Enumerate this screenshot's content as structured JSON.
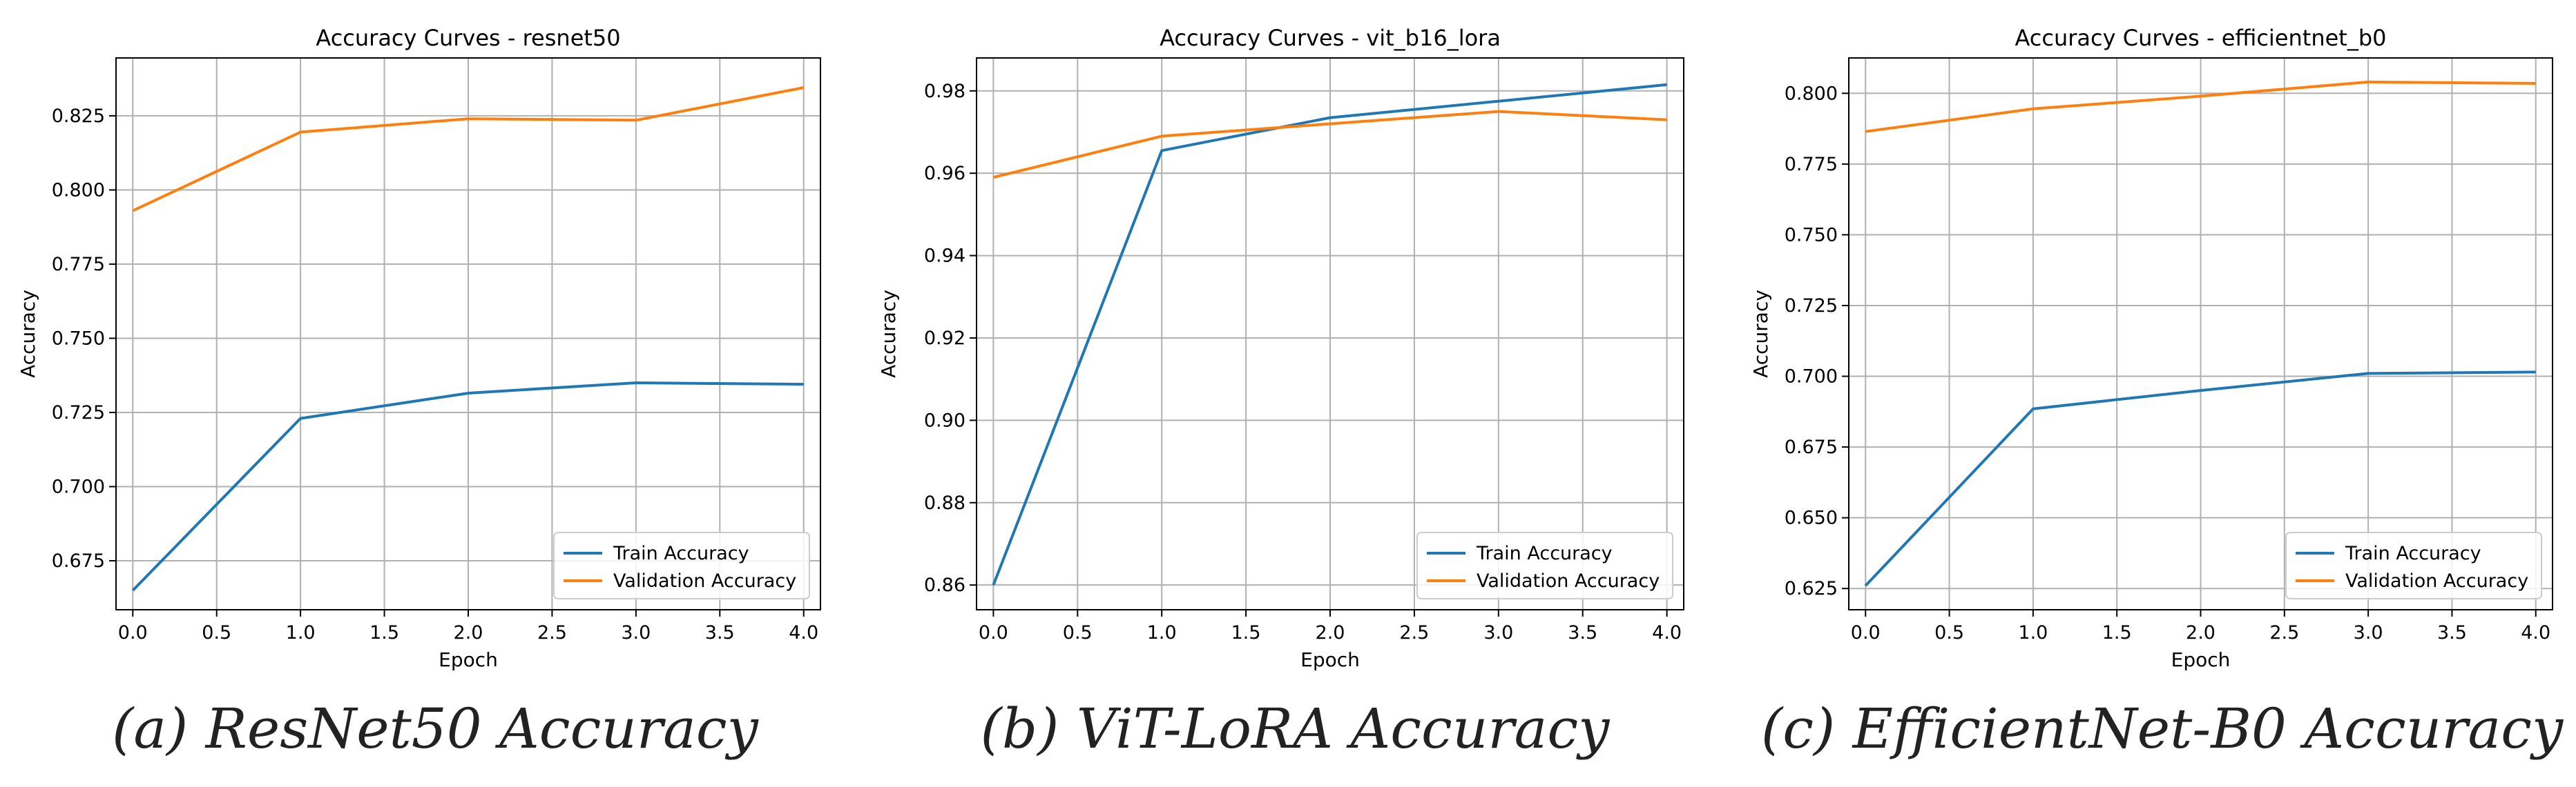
{
  "colors": {
    "train": "#1f77b4",
    "validation": "#ff7f0e",
    "grid": "#b0b0b0",
    "axis": "#000000"
  },
  "chart_data": [
    {
      "type": "line",
      "title": "Accuracy Curves - resnet50",
      "xlabel": "Epoch",
      "ylabel": "Accuracy",
      "xlim": [
        -0.1,
        4.1
      ],
      "ylim": [
        0.6585,
        0.8445
      ],
      "xticks": [
        0,
        0.5,
        1,
        1.5,
        2,
        2.5,
        3,
        3.5,
        4
      ],
      "xticklabels": [
        "0.0",
        "0.5",
        "1.0",
        "1.5",
        "2.0",
        "2.5",
        "3.0",
        "3.5",
        "4.0"
      ],
      "yticks": [
        0.675,
        0.7,
        0.725,
        0.75,
        0.775,
        0.8,
        0.825
      ],
      "yticklabels": [
        "0.675",
        "0.700",
        "0.725",
        "0.750",
        "0.775",
        "0.800",
        "0.825"
      ],
      "x": [
        0,
        1,
        2,
        3,
        4
      ],
      "series": [
        {
          "name": "Train Accuracy",
          "values": [
            0.665,
            0.723,
            0.7315,
            0.735,
            0.7345
          ]
        },
        {
          "name": "Validation Accuracy",
          "values": [
            0.793,
            0.8195,
            0.824,
            0.8235,
            0.8345
          ]
        }
      ],
      "grid": true,
      "legend": "lower-right",
      "caption": "(a) ResNet50 Accuracy"
    },
    {
      "type": "line",
      "title": "Accuracy Curves - vit_b16_lora",
      "xlabel": "Epoch",
      "ylabel": "Accuracy",
      "xlim": [
        -0.1,
        4.1
      ],
      "ylim": [
        0.854,
        0.988
      ],
      "xticks": [
        0,
        0.5,
        1,
        1.5,
        2,
        2.5,
        3,
        3.5,
        4
      ],
      "xticklabels": [
        "0.0",
        "0.5",
        "1.0",
        "1.5",
        "2.0",
        "2.5",
        "3.0",
        "3.5",
        "4.0"
      ],
      "yticks": [
        0.86,
        0.88,
        0.9,
        0.92,
        0.94,
        0.96,
        0.98
      ],
      "yticklabels": [
        "0.86",
        "0.88",
        "0.90",
        "0.92",
        "0.94",
        "0.96",
        "0.98"
      ],
      "x": [
        0,
        1,
        2,
        3,
        4
      ],
      "series": [
        {
          "name": "Train Accuracy",
          "values": [
            0.86,
            0.9655,
            0.9735,
            0.9775,
            0.9815
          ]
        },
        {
          "name": "Validation Accuracy",
          "values": [
            0.959,
            0.969,
            0.972,
            0.975,
            0.973
          ]
        }
      ],
      "grid": true,
      "legend": "lower-right",
      "caption": "(b) ViT-LoRA Accuracy"
    },
    {
      "type": "line",
      "title": "Accuracy Curves - efficientnet_b0",
      "xlabel": "Epoch",
      "ylabel": "Accuracy",
      "xlim": [
        -0.1,
        4.1
      ],
      "ylim": [
        0.6175,
        0.8125
      ],
      "xticks": [
        0,
        0.5,
        1,
        1.5,
        2,
        2.5,
        3,
        3.5,
        4
      ],
      "xticklabels": [
        "0.0",
        "0.5",
        "1.0",
        "1.5",
        "2.0",
        "2.5",
        "3.0",
        "3.5",
        "4.0"
      ],
      "yticks": [
        0.625,
        0.65,
        0.675,
        0.7,
        0.725,
        0.75,
        0.775,
        0.8
      ],
      "yticklabels": [
        "0.625",
        "0.650",
        "0.675",
        "0.700",
        "0.725",
        "0.750",
        "0.775",
        "0.800"
      ],
      "x": [
        0,
        1,
        2,
        3,
        4
      ],
      "series": [
        {
          "name": "Train Accuracy",
          "values": [
            0.626,
            0.6885,
            0.695,
            0.701,
            0.7015
          ]
        },
        {
          "name": "Validation Accuracy",
          "values": [
            0.7865,
            0.7945,
            0.799,
            0.804,
            0.8035
          ]
        }
      ],
      "grid": true,
      "legend": "lower-right",
      "caption": "(c) EfficientNet-B0 Accuracy"
    }
  ]
}
